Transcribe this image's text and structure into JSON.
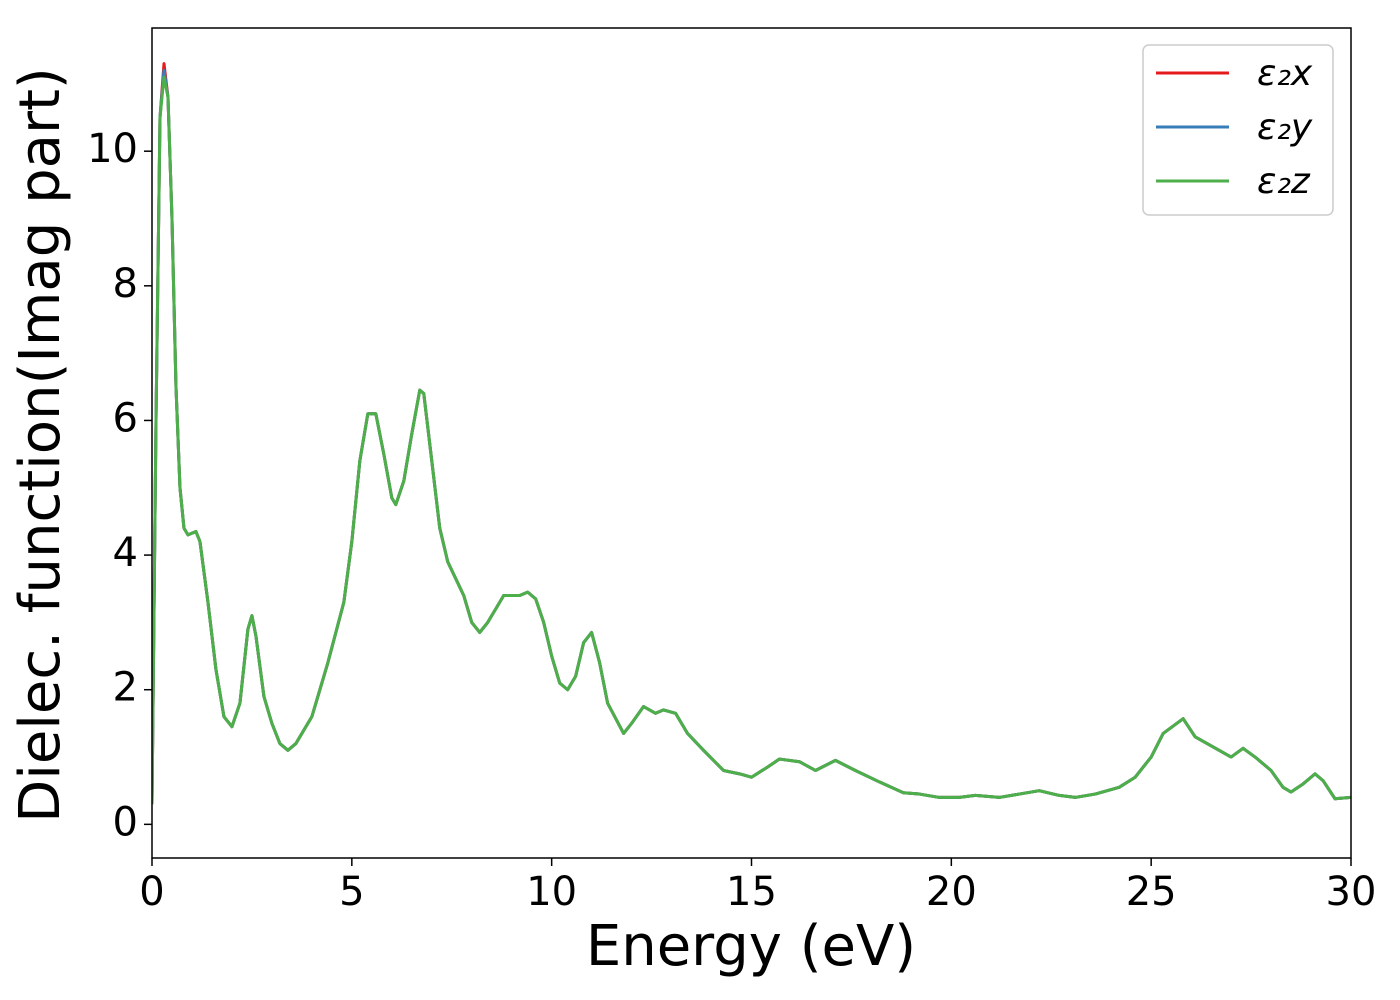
{
  "chart_data": {
    "type": "line",
    "xlabel": "Energy (eV)",
    "ylabel": "Dielec. function(Imag part)",
    "xlim": [
      0,
      30
    ],
    "ylim": [
      -0.5,
      11.83
    ],
    "xticks": [
      0,
      5,
      10,
      15,
      20,
      25,
      30
    ],
    "yticks": [
      0,
      2,
      4,
      6,
      8,
      10
    ],
    "legend": "upper right",
    "grid": false,
    "x": [
      0,
      0.1,
      0.2,
      0.3,
      0.4,
      0.5,
      0.6,
      0.7,
      0.8,
      0.9,
      1.1,
      1.2,
      1.4,
      1.6,
      1.8,
      2.0,
      2.2,
      2.4,
      2.5,
      2.6,
      2.8,
      3.0,
      3.2,
      3.4,
      3.6,
      4.0,
      4.4,
      4.8,
      5.0,
      5.2,
      5.4,
      5.6,
      5.8,
      6.0,
      6.1,
      6.3,
      6.5,
      6.7,
      6.8,
      7.0,
      7.2,
      7.4,
      7.8,
      8.0,
      8.2,
      8.4,
      8.8,
      9.2,
      9.4,
      9.6,
      9.8,
      10.0,
      10.2,
      10.4,
      10.6,
      10.8,
      11.0,
      11.2,
      11.4,
      11.8,
      12.0,
      12.3,
      12.6,
      12.8,
      13.1,
      13.4,
      13.8,
      14.3,
      14.7,
      15.0,
      15.4,
      15.7,
      16.2,
      16.6,
      17.1,
      17.6,
      18.2,
      18.8,
      19.2,
      19.7,
      20.2,
      20.6,
      21.2,
      21.7,
      22.2,
      22.7,
      23.1,
      23.6,
      24.2,
      24.6,
      25.0,
      25.3,
      25.8,
      26.1,
      26.4,
      26.7,
      27.0,
      27.3,
      27.6,
      28.0,
      28.3,
      28.5,
      28.8,
      29.1,
      29.3,
      29.6,
      30.0
    ],
    "series": [
      {
        "name": "ε₂x",
        "color": "#e41a1c",
        "values": [
          0.3,
          6,
          10.5,
          11.3,
          10.8,
          9,
          6.5,
          5,
          4.4,
          4.3,
          4.35,
          4.2,
          3.3,
          2.3,
          1.6,
          1.45,
          1.8,
          2.9,
          3.1,
          2.8,
          1.9,
          1.5,
          1.2,
          1.1,
          1.2,
          1.6,
          2.4,
          3.3,
          4.2,
          5.4,
          6.1,
          6.1,
          5.5,
          4.85,
          4.75,
          5.1,
          5.8,
          6.45,
          6.4,
          5.4,
          4.4,
          3.9,
          3.4,
          3.0,
          2.85,
          3.0,
          3.4,
          3.4,
          3.45,
          3.35,
          3.0,
          2.5,
          2.1,
          2.0,
          2.2,
          2.7,
          2.85,
          2.4,
          1.8,
          1.35,
          1.5,
          1.75,
          1.65,
          1.7,
          1.65,
          1.35,
          1.1,
          0.8,
          0.75,
          0.7,
          0.85,
          0.97,
          0.93,
          0.8,
          0.95,
          0.8,
          0.63,
          0.47,
          0.45,
          0.4,
          0.4,
          0.43,
          0.4,
          0.45,
          0.5,
          0.43,
          0.4,
          0.45,
          0.55,
          0.7,
          1.0,
          1.35,
          1.57,
          1.3,
          1.2,
          1.1,
          1.0,
          1.13,
          1.0,
          0.8,
          0.55,
          0.48,
          0.6,
          0.75,
          0.65,
          0.38,
          0.4
        ]
      },
      {
        "name": "ε₂y",
        "color": "#377eb8",
        "values": [
          0.3,
          6,
          10.5,
          11.2,
          10.8,
          9,
          6.5,
          5,
          4.4,
          4.3,
          4.35,
          4.2,
          3.3,
          2.3,
          1.6,
          1.45,
          1.8,
          2.9,
          3.1,
          2.8,
          1.9,
          1.5,
          1.2,
          1.1,
          1.2,
          1.6,
          2.4,
          3.3,
          4.2,
          5.4,
          6.1,
          6.1,
          5.5,
          4.85,
          4.75,
          5.1,
          5.8,
          6.45,
          6.4,
          5.4,
          4.4,
          3.9,
          3.4,
          3.0,
          2.85,
          3.0,
          3.4,
          3.4,
          3.45,
          3.35,
          3.0,
          2.5,
          2.1,
          2.0,
          2.2,
          2.7,
          2.85,
          2.4,
          1.8,
          1.35,
          1.5,
          1.75,
          1.65,
          1.7,
          1.65,
          1.35,
          1.1,
          0.8,
          0.75,
          0.7,
          0.85,
          0.97,
          0.93,
          0.8,
          0.95,
          0.8,
          0.63,
          0.47,
          0.45,
          0.4,
          0.4,
          0.43,
          0.4,
          0.45,
          0.5,
          0.43,
          0.4,
          0.45,
          0.55,
          0.7,
          1.0,
          1.35,
          1.57,
          1.3,
          1.2,
          1.1,
          1.0,
          1.13,
          1.0,
          0.8,
          0.55,
          0.48,
          0.6,
          0.75,
          0.65,
          0.38,
          0.4
        ]
      },
      {
        "name": "ε₂z",
        "color": "#4daf4a",
        "values": [
          0.3,
          6,
          10.5,
          11.1,
          10.8,
          9,
          6.5,
          5,
          4.4,
          4.3,
          4.35,
          4.2,
          3.3,
          2.3,
          1.6,
          1.45,
          1.8,
          2.9,
          3.1,
          2.8,
          1.9,
          1.5,
          1.2,
          1.1,
          1.2,
          1.6,
          2.4,
          3.3,
          4.2,
          5.4,
          6.1,
          6.1,
          5.5,
          4.85,
          4.75,
          5.1,
          5.8,
          6.45,
          6.4,
          5.4,
          4.4,
          3.9,
          3.4,
          3.0,
          2.85,
          3.0,
          3.4,
          3.4,
          3.45,
          3.35,
          3.0,
          2.5,
          2.1,
          2.0,
          2.2,
          2.7,
          2.85,
          2.4,
          1.8,
          1.35,
          1.5,
          1.75,
          1.65,
          1.7,
          1.65,
          1.35,
          1.1,
          0.8,
          0.75,
          0.7,
          0.85,
          0.97,
          0.93,
          0.8,
          0.95,
          0.8,
          0.63,
          0.47,
          0.45,
          0.4,
          0.4,
          0.43,
          0.4,
          0.45,
          0.5,
          0.43,
          0.4,
          0.45,
          0.55,
          0.7,
          1.0,
          1.35,
          1.57,
          1.3,
          1.2,
          1.1,
          1.0,
          1.13,
          1.0,
          0.8,
          0.55,
          0.48,
          0.6,
          0.75,
          0.65,
          0.38,
          0.4
        ]
      }
    ]
  }
}
